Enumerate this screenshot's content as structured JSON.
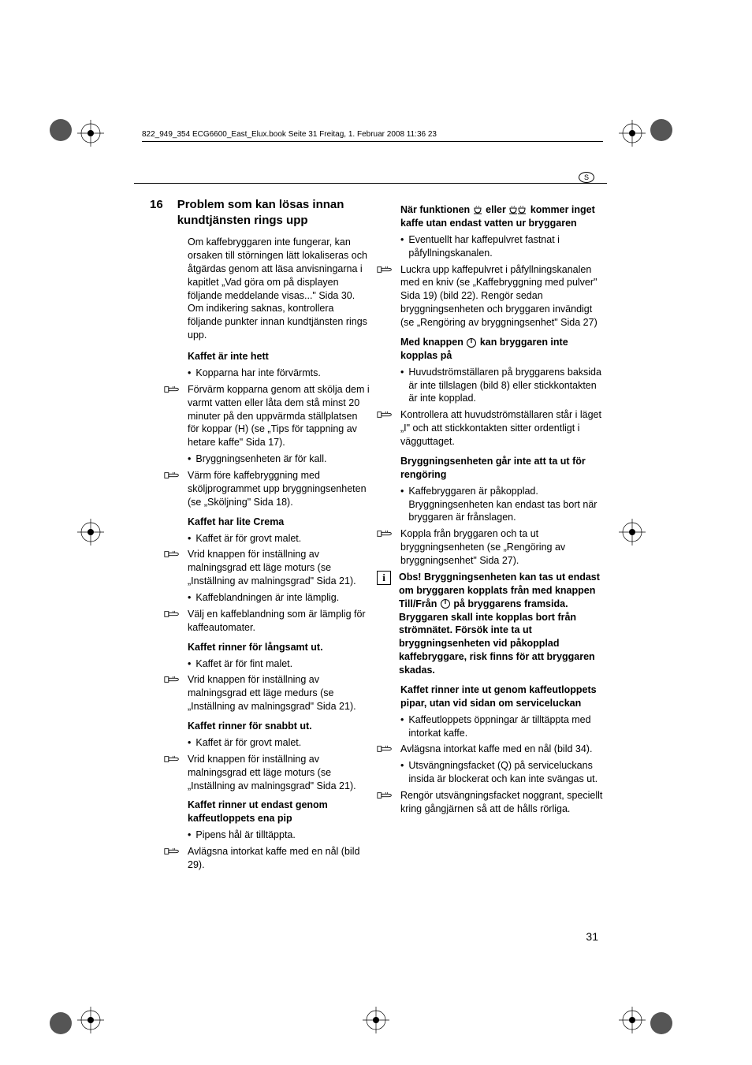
{
  "runningHead": "822_949_354 ECG6600_East_Elux.book  Seite 31  Freitag, 1. Februar 2008  11:36 23",
  "langBadge": "S",
  "pageNumber": "31",
  "section": {
    "number": "16",
    "title": "Problem som kan lösas innan kundtjänsten rings upp"
  },
  "intro": "Om kaffebryggaren inte fungerar, kan orsaken till störningen lätt lokaliseras och åtgärdas genom att läsa anvisningarna i kapitlet „Vad göra om på displayen följande meddelande visas...\" Sida 30. Om indikering saknas, kontrollera följande punkter innan kundtjänsten rings upp.",
  "col1": [
    {
      "type": "sub",
      "text": "Kaffet är inte hett"
    },
    {
      "type": "bul",
      "text": "Kopparna har inte förvärmts."
    },
    {
      "type": "hand",
      "text": "Förvärm kopparna genom att skölja dem i varmt vatten eller låta dem stå minst 20 minuter på den uppvärmda ställplatsen för koppar (H) (se „Tips för tappning av hetare kaffe\" Sida 17)."
    },
    {
      "type": "bul",
      "text": "Bryggningsenheten är för kall."
    },
    {
      "type": "hand",
      "text": "Värm före kaffebryggning med sköljprogrammet upp bryggningsenheten (se „Sköljning\" Sida 18)."
    },
    {
      "type": "sub",
      "text": "Kaffet har lite Crema"
    },
    {
      "type": "bul",
      "text": "Kaffet är för grovt malet."
    },
    {
      "type": "hand",
      "text": "Vrid knappen för inställning av malningsgrad ett läge moturs (se „Inställning av malningsgrad\" Sida 21)."
    },
    {
      "type": "bul",
      "text": "Kaffeblandningen är inte lämplig."
    },
    {
      "type": "hand",
      "text": "Välj en kaffeblandning som är lämplig för kaffeautomater."
    },
    {
      "type": "sub",
      "text": "Kaffet rinner för långsamt ut."
    },
    {
      "type": "bul",
      "text": "Kaffet är för fint malet."
    },
    {
      "type": "hand",
      "text": "Vrid knappen för inställning av malningsgrad ett läge medurs (se „Inställning av malningsgrad\" Sida 21)."
    },
    {
      "type": "sub",
      "text": "Kaffet rinner för snabbt ut."
    },
    {
      "type": "bul",
      "text": "Kaffet är för grovt malet."
    },
    {
      "type": "hand",
      "text": "Vrid knappen för inställning av malningsgrad ett läge moturs (se „Inställning av malningsgrad\" Sida 21)."
    },
    {
      "type": "sub",
      "text": "Kaffet rinner ut endast genom kaffeutloppets ena pip"
    },
    {
      "type": "bul",
      "text": "Pipens hål är tilltäppta."
    },
    {
      "type": "hand",
      "text": "Avlägsna intorkat kaffe med en nål (bild 29)."
    }
  ],
  "col2": [
    {
      "type": "subicon",
      "pre": "När funktionen ",
      "mid": " eller ",
      "post": " kommer inget kaffe utan endast vatten ur bryggaren"
    },
    {
      "type": "bul",
      "text": "Eventuellt har kaffepulvret fastnat i påfyllningskanalen."
    },
    {
      "type": "hand",
      "text": "Luckra upp kaffepulvret i påfyllningskanalen med en kniv (se „Kaffebryggning med pulver\" Sida 19) (bild 22). Rengör sedan bryggningsenheten och bryggaren invändigt (se „Rengöring av bryggningsenhet\" Sida 27)"
    },
    {
      "type": "subpower",
      "pre": "Med knappen ",
      "post": " kan bryggaren inte kopplas på"
    },
    {
      "type": "bul",
      "text": "Huvudströmställaren på bryggarens baksida är inte tillslagen (bild 8) eller stickkontakten är inte kopplad."
    },
    {
      "type": "hand",
      "text": "Kontrollera att huvudströmställaren står i läget „I\" och att stickkontakten sitter ordentligt i vägguttaget."
    },
    {
      "type": "sub",
      "text": "Bryggningsenheten går inte att ta ut för rengöring"
    },
    {
      "type": "bul",
      "text": "Kaffebryggaren är påkopplad. Bryggningsenheten kan endast tas bort när bryggaren är frånslagen."
    },
    {
      "type": "hand",
      "text": "Koppla från bryggaren och ta ut bryggningsenheten (se „Rengöring av bryggningsenhet\" Sida 27)."
    },
    {
      "type": "info",
      "pre": "Obs! Bryggningsenheten kan tas ut endast om bryggaren kopplats från med knappen Till/Från ",
      "post": " på bryggarens framsida. Bryggaren skall inte kopplas bort från strömnätet. Försök inte ta ut bryggningsenheten vid påkopplad kaffebryggare, risk finns för att bryggaren skadas."
    },
    {
      "type": "sub",
      "text": "Kaffet rinner inte ut genom kaffeutloppets pipar, utan vid sidan om serviceluckan"
    },
    {
      "type": "bul",
      "text": "Kaffeutloppets öppningar är tilltäppta med intorkat kaffe."
    },
    {
      "type": "hand",
      "text": "Avlägsna intorkat kaffe med en nål (bild 34)."
    },
    {
      "type": "bul",
      "text": "Utsvängningsfacket (Q) på serviceluckans insida är blockerat och kan inte svängas ut."
    },
    {
      "type": "hand",
      "text": "Rengör utsvängningsfacket noggrant, speciellt kring gångjärnen så att de hålls rörliga."
    }
  ]
}
